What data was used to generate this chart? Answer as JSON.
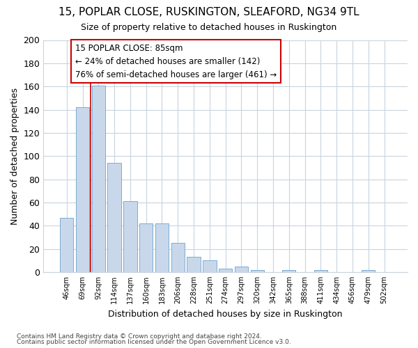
{
  "title": "15, POPLAR CLOSE, RUSKINGTON, SLEAFORD, NG34 9TL",
  "subtitle": "Size of property relative to detached houses in Ruskington",
  "xlabel": "Distribution of detached houses by size in Ruskington",
  "ylabel": "Number of detached properties",
  "categories": [
    "46sqm",
    "69sqm",
    "92sqm",
    "114sqm",
    "137sqm",
    "160sqm",
    "183sqm",
    "206sqm",
    "228sqm",
    "251sqm",
    "274sqm",
    "297sqm",
    "320sqm",
    "342sqm",
    "365sqm",
    "388sqm",
    "411sqm",
    "434sqm",
    "456sqm",
    "479sqm",
    "502sqm"
  ],
  "values": [
    47,
    142,
    161,
    94,
    61,
    42,
    42,
    25,
    13,
    10,
    3,
    5,
    2,
    0,
    2,
    0,
    2,
    0,
    0,
    2,
    0
  ],
  "bar_color": "#c8d8ea",
  "bar_edge_color": "#7aadd4",
  "annotation_text": "15 POPLAR CLOSE: 85sqm\n← 24% of detached houses are smaller (142)\n76% of semi-detached houses are larger (461) →",
  "annotation_box_color": "#ffffff",
  "annotation_box_edge_color": "#cc0000",
  "vline_color": "#cc0000",
  "ylim": [
    0,
    200
  ],
  "yticks": [
    0,
    20,
    40,
    60,
    80,
    100,
    120,
    140,
    160,
    180,
    200
  ],
  "footer1": "Contains HM Land Registry data © Crown copyright and database right 2024.",
  "footer2": "Contains public sector information licensed under the Open Government Licence v3.0.",
  "bg_color": "#ffffff",
  "plot_bg_color": "#ffffff",
  "grid_color": "#c8d4de"
}
